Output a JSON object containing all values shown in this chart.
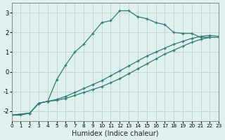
{
  "xlabel": "Humidex (Indice chaleur)",
  "bg_color": "#dff0f0",
  "grid_color": "#c0d8d8",
  "line_color": "#2e7d6e",
  "xlim": [
    0,
    23
  ],
  "ylim": [
    -2.5,
    3.5
  ],
  "yticks": [
    -2,
    -1,
    0,
    1,
    2,
    3
  ],
  "xticks": [
    0,
    1,
    2,
    3,
    4,
    5,
    6,
    7,
    8,
    9,
    10,
    11,
    12,
    13,
    14,
    15,
    16,
    17,
    18,
    19,
    20,
    21,
    22,
    23
  ],
  "curve1_x": [
    0,
    1,
    2,
    3,
    4,
    5,
    6,
    7,
    8,
    9,
    10,
    11,
    12,
    13,
    14,
    15,
    16,
    17,
    18,
    19,
    20,
    21,
    22
  ],
  "curve1_y": [
    -2.2,
    -2.2,
    -2.1,
    -1.6,
    -1.5,
    -0.4,
    0.35,
    1.0,
    1.4,
    1.95,
    2.5,
    2.6,
    3.1,
    3.1,
    2.8,
    2.7,
    2.5,
    2.4,
    2.0,
    1.95,
    1.95,
    1.75,
    1.75
  ],
  "curve2_x": [
    0,
    2,
    3,
    4,
    5,
    6,
    7,
    8,
    9,
    10,
    11,
    12,
    13,
    14,
    15,
    16,
    17,
    18,
    19,
    20,
    21,
    22,
    23
  ],
  "curve2_y": [
    -2.2,
    -2.1,
    -1.6,
    -1.5,
    -1.45,
    -1.35,
    -1.2,
    -1.05,
    -0.9,
    -0.75,
    -0.55,
    -0.35,
    -0.1,
    0.15,
    0.4,
    0.65,
    0.9,
    1.1,
    1.3,
    1.5,
    1.65,
    1.75,
    1.75
  ],
  "curve3_x": [
    0,
    2,
    3,
    4,
    5,
    6,
    7,
    8,
    9,
    10,
    11,
    12,
    13,
    14,
    15,
    16,
    17,
    18,
    19,
    20,
    21,
    22,
    23
  ],
  "curve3_y": [
    -2.2,
    -2.1,
    -1.6,
    -1.5,
    -1.4,
    -1.25,
    -1.05,
    -0.85,
    -0.65,
    -0.45,
    -0.2,
    0.05,
    0.3,
    0.55,
    0.8,
    1.0,
    1.2,
    1.4,
    1.55,
    1.7,
    1.8,
    1.85,
    1.8
  ]
}
